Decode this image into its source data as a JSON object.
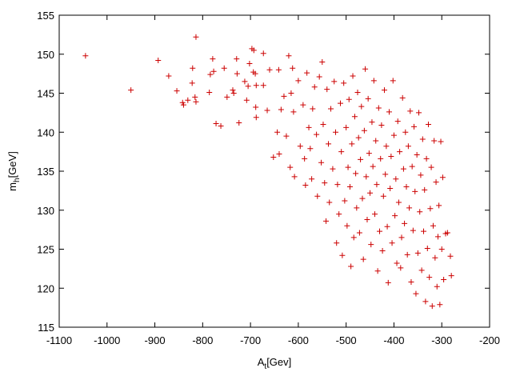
{
  "chart_data": {
    "type": "scatter",
    "x_label": {
      "main": "A",
      "sub": "t",
      "rest": "[Gev]"
    },
    "y_label": {
      "main": "m",
      "sub": "h",
      "rest": "[GeV]"
    },
    "color": "#cc0000",
    "marker": "+",
    "xlim": [
      -1100,
      -200
    ],
    "xticks": [
      -1100,
      -1000,
      -900,
      -800,
      -700,
      -600,
      -500,
      -400,
      -300,
      -200
    ],
    "ylim": [
      115,
      155
    ],
    "yticks": [
      115,
      120,
      125,
      130,
      135,
      140,
      145,
      150,
      155
    ],
    "x": [
      -1045,
      -950,
      -893,
      -871,
      -854,
      -842,
      -840,
      -831,
      -822,
      -821,
      -814,
      -816,
      -814,
      -786,
      -784,
      -779,
      -777,
      -772,
      -762,
      -755,
      -749,
      -737,
      -735,
      -729,
      -724,
      -728,
      -712,
      -708,
      -705,
      -702,
      -697,
      -693,
      -694,
      -690,
      -688,
      -689,
      -688,
      -673,
      -673,
      -665,
      -660,
      -652,
      -644,
      -640,
      -641,
      -636,
      -630,
      -625,
      -620,
      -617,
      -615,
      -612,
      -610,
      -608,
      -600,
      -596,
      -590,
      -587,
      -585,
      -582,
      -578,
      -575,
      -572,
      -570,
      -566,
      -562,
      -560,
      -556,
      -552,
      -550,
      -548,
      -545,
      -542,
      -540,
      -537,
      -535,
      -532,
      -528,
      -525,
      -522,
      -520,
      -518,
      -515,
      -512,
      -510,
      -508,
      -505,
      -503,
      -500,
      -498,
      -496,
      -494,
      -492,
      -490,
      -488,
      -486,
      -484,
      -482,
      -480,
      -478,
      -476,
      -474,
      -472,
      -470,
      -468,
      -466,
      -464,
      -462,
      -460,
      -458,
      -456,
      -454,
      -452,
      -450,
      -448,
      -446,
      -444,
      -442,
      -440,
      -438,
      -436,
      -434,
      -432,
      -430,
      -428,
      -426,
      -424,
      -422,
      -420,
      -418,
      -416,
      -414,
      -412,
      -410,
      -408,
      -406,
      -404,
      -402,
      -400,
      -398,
      -396,
      -394,
      -392,
      -390,
      -388,
      -386,
      -384,
      -382,
      -380,
      -378,
      -376,
      -374,
      -372,
      -370,
      -368,
      -366,
      -364,
      -362,
      -360,
      -358,
      -356,
      -354,
      -352,
      -350,
      -348,
      -346,
      -344,
      -342,
      -340,
      -338,
      -336,
      -334,
      -332,
      -330,
      -328,
      -326,
      -324,
      -322,
      -320,
      -318,
      -316,
      -314,
      -312,
      -310,
      -308,
      -306,
      -304,
      -302,
      -300,
      -298,
      -296,
      -292,
      -288,
      -282,
      -280
    ],
    "values": [
      149.8,
      145.4,
      149.2,
      147.2,
      145.3,
      143.8,
      143.5,
      144.1,
      146.3,
      148.2,
      152.2,
      144.5,
      143.9,
      145.1,
      147.4,
      149.4,
      147.8,
      141.1,
      140.8,
      148.2,
      144.5,
      145.4,
      145,
      149.4,
      141.2,
      147.5,
      146.5,
      144.1,
      145.9,
      148.8,
      150.7,
      150.5,
      147.7,
      147.5,
      146,
      143.2,
      141.9,
      150.1,
      146,
      142.8,
      148,
      136.8,
      140,
      137.2,
      148,
      142.9,
      144.6,
      139.5,
      149.8,
      135.5,
      145,
      148.2,
      142.6,
      134.3,
      146.6,
      138.2,
      143.5,
      136.6,
      133.2,
      147.6,
      140.6,
      137.9,
      134,
      143,
      145.8,
      139.7,
      131.8,
      147.1,
      136.1,
      149,
      141,
      133.5,
      128.6,
      145.5,
      138.5,
      131,
      143,
      135.3,
      146.5,
      140,
      125.8,
      133.3,
      129.5,
      143.7,
      137.5,
      124.2,
      146.3,
      131.2,
      140.6,
      128,
      135.5,
      144.2,
      133,
      122.8,
      138.5,
      147.2,
      126.5,
      142,
      134.7,
      130.3,
      145.1,
      139.3,
      127.1,
      136.5,
      143.3,
      131.5,
      123.7,
      140.2,
      148.1,
      134.3,
      128.8,
      144.3,
      137.3,
      132.2,
      125.6,
      141.3,
      135.6,
      146.6,
      129.5,
      138.9,
      133.3,
      122.2,
      143.1,
      127.3,
      136.6,
      140.9,
      124.8,
      131.8,
      145.4,
      134.6,
      138.2,
      127.9,
      120.7,
      142.6,
      132.8,
      136.9,
      125.8,
      146.6,
      139.6,
      129.3,
      134,
      123.2,
      141.4,
      131,
      137.5,
      122.6,
      126.5,
      144.4,
      135.3,
      128.3,
      140,
      133,
      124.3,
      138.2,
      130.3,
      142.7,
      120.8,
      135.6,
      127.4,
      140.7,
      132.4,
      119.3,
      137.1,
      124.5,
      142.5,
      129.8,
      134.5,
      122.3,
      139.1,
      127.3,
      132.6,
      118.3,
      136.6,
      125.1,
      141,
      121.4,
      130.2,
      135.5,
      117.7,
      128,
      138.9,
      123.9,
      133.6,
      120.2,
      126.6,
      130.6,
      117.9,
      138.8,
      125,
      134.2,
      121.1,
      127,
      127.1,
      124.1,
      121.6
    ]
  }
}
